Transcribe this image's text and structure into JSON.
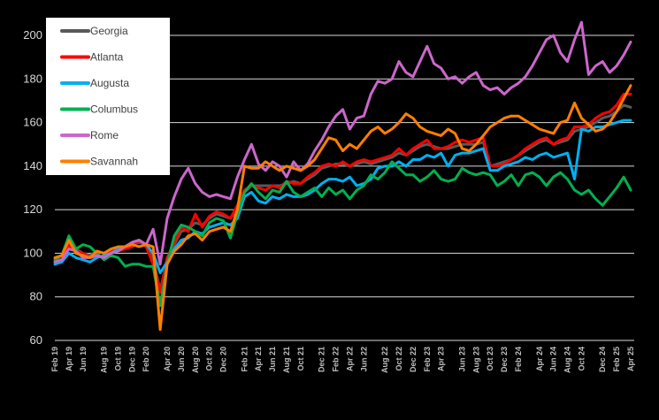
{
  "chart_data": {
    "type": "line",
    "title": "",
    "xlabel": "",
    "ylabel": "",
    "ylim": [
      60,
      200
    ],
    "yticks": [
      60,
      80,
      100,
      120,
      140,
      160,
      180,
      200
    ],
    "grid": "horizontal",
    "legend_position": "top-left",
    "x_tick_labels": [
      "Feb 19",
      "Apr 19",
      "Jun 19",
      "Aug 19",
      "Oct 19",
      "Dec 19",
      "Feb 20",
      "Apr 20",
      "Jun 20",
      "Aug 20",
      "Oct 20",
      "Dec 20",
      "Feb 21",
      "Apr 21",
      "Jun 21",
      "Aug 21",
      "Oct 21",
      "Dec 21",
      "Feb 22",
      "Apr 22",
      "Jun 22",
      "Aug 22",
      "Oct 22",
      "Dec 22",
      "Feb 23",
      "Apr 23",
      "Jun 23",
      "Aug 23",
      "Oct 23",
      "Dec 23",
      "Feb 24",
      "Apr 24",
      "Jun 24",
      "Aug 24",
      "Oct 24",
      "Dec 24",
      "Feb 25",
      "Apr 25"
    ],
    "series": [
      {
        "name": "Georgia",
        "color": "#595959",
        "values": [
          97,
          97,
          103,
          102,
          100,
          99,
          101,
          100,
          101,
          102,
          103,
          104,
          105,
          104,
          97,
          83,
          97,
          104,
          110,
          111,
          114,
          113,
          116,
          118,
          117,
          116,
          120,
          128,
          131,
          131,
          131,
          131,
          131,
          132,
          133,
          132,
          134,
          136,
          139,
          140,
          141,
          141,
          140,
          141,
          142,
          141,
          142,
          143,
          144,
          146,
          145,
          147,
          149,
          150,
          149,
          148,
          148,
          149,
          150,
          150,
          150,
          151,
          140,
          141,
          142,
          143,
          145,
          147,
          149,
          151,
          152,
          150,
          151,
          152,
          156,
          157,
          158,
          160,
          162,
          163,
          165,
          168,
          167
        ]
      },
      {
        "name": "Atlanta",
        "color": "#ff0000",
        "values": [
          96,
          97,
          104,
          101,
          100,
          98,
          101,
          100,
          101,
          101,
          102,
          103,
          106,
          103,
          95,
          82,
          98,
          105,
          112,
          110,
          118,
          112,
          117,
          119,
          118,
          116,
          122,
          129,
          131,
          130,
          129,
          131,
          130,
          133,
          132,
          132,
          135,
          137,
          140,
          141,
          140,
          142,
          140,
          142,
          143,
          142,
          143,
          144,
          145,
          148,
          145,
          148,
          150,
          152,
          148,
          148,
          149,
          151,
          152,
          151,
          152,
          153,
          140,
          140,
          141,
          143,
          145,
          148,
          150,
          152,
          153,
          150,
          152,
          153,
          158,
          158,
          159,
          162,
          164,
          165,
          168,
          173,
          173
        ]
      },
      {
        "name": "Augusta",
        "color": "#00b0f0",
        "values": [
          95,
          96,
          100,
          98,
          97,
          96,
          98,
          99,
          100,
          102,
          103,
          105,
          106,
          104,
          100,
          91,
          96,
          102,
          106,
          107,
          110,
          109,
          112,
          113,
          114,
          113,
          116,
          126,
          128,
          124,
          123,
          126,
          125,
          127,
          126,
          126,
          127,
          129,
          132,
          134,
          134,
          133,
          135,
          131,
          132,
          134,
          139,
          140,
          140,
          142,
          140,
          143,
          143,
          145,
          144,
          146,
          140,
          145,
          146,
          146,
          147,
          148,
          138,
          138,
          140,
          141,
          142,
          144,
          143,
          145,
          146,
          144,
          145,
          146,
          134,
          157,
          156,
          158,
          158,
          159,
          160,
          161,
          161
        ]
      },
      {
        "name": "Columbus",
        "color": "#00b050",
        "values": [
          97,
          99,
          108,
          102,
          104,
          103,
          100,
          97,
          99,
          98,
          94,
          95,
          95,
          94,
          94,
          76,
          95,
          108,
          113,
          112,
          110,
          108,
          114,
          116,
          115,
          107,
          118,
          128,
          132,
          128,
          125,
          129,
          128,
          133,
          128,
          126,
          128,
          130,
          126,
          130,
          127,
          129,
          125,
          129,
          131,
          136,
          134,
          137,
          142,
          139,
          136,
          136,
          133,
          135,
          138,
          134,
          133,
          134,
          139,
          137,
          136,
          137,
          136,
          131,
          133,
          136,
          131,
          136,
          137,
          135,
          131,
          135,
          137,
          134,
          129,
          127,
          129,
          125,
          122,
          126,
          130,
          135,
          129
        ]
      },
      {
        "name": "Rome",
        "color": "#cc66cc",
        "values": [
          96,
          97,
          102,
          101,
          98,
          98,
          99,
          98,
          100,
          101,
          103,
          105,
          106,
          104,
          111,
          95,
          116,
          126,
          134,
          139,
          132,
          128,
          126,
          127,
          126,
          125,
          135,
          143,
          150,
          141,
          138,
          142,
          140,
          135,
          142,
          138,
          141,
          147,
          152,
          158,
          163,
          166,
          157,
          162,
          163,
          173,
          179,
          178,
          180,
          188,
          183,
          181,
          188,
          195,
          187,
          185,
          180,
          181,
          178,
          181,
          183,
          177,
          175,
          176,
          173,
          176,
          178,
          181,
          186,
          192,
          198,
          200,
          192,
          188,
          198,
          206,
          182,
          186,
          188,
          183,
          186,
          191,
          197
        ]
      },
      {
        "name": "Savannah",
        "color": "#ff7f00",
        "values": [
          98,
          99,
          106,
          100,
          99,
          98,
          101,
          100,
          102,
          103,
          103,
          104,
          103,
          104,
          103,
          65,
          95,
          101,
          104,
          108,
          109,
          106,
          110,
          111,
          112,
          110,
          120,
          140,
          139,
          139,
          142,
          140,
          138,
          140,
          139,
          138,
          140,
          143,
          148,
          153,
          152,
          147,
          150,
          148,
          152,
          156,
          158,
          155,
          157,
          160,
          164,
          162,
          158,
          156,
          155,
          154,
          157,
          155,
          148,
          147,
          150,
          154,
          158,
          160,
          162,
          163,
          163,
          161,
          159,
          157,
          156,
          155,
          160,
          161,
          169,
          162,
          159,
          156,
          157,
          160,
          165,
          171,
          177
        ]
      }
    ]
  }
}
